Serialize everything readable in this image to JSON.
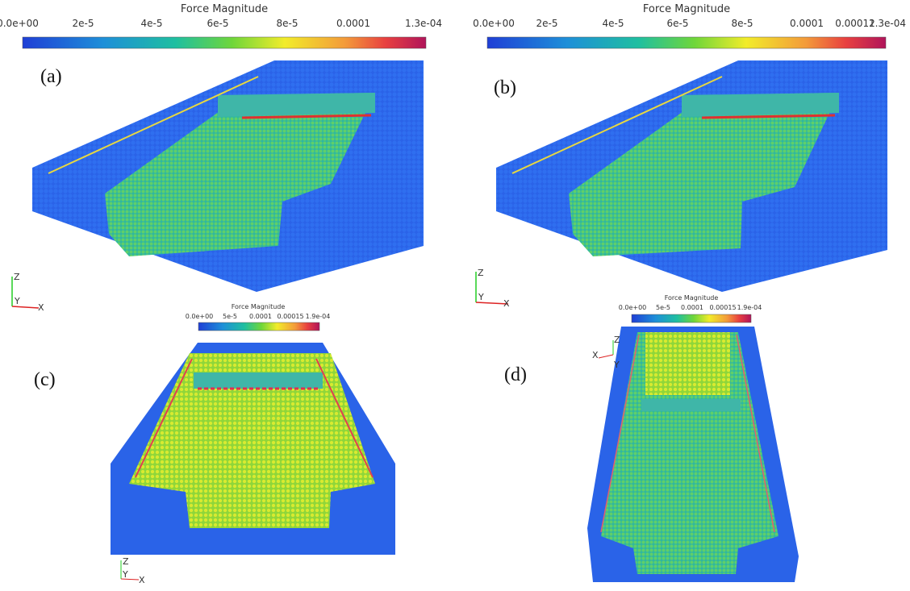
{
  "panels": [
    {
      "label": "(a)",
      "colorbar": {
        "title": "Force Magnitude",
        "ticks": [
          "0.0e+00",
          "2e-5",
          "4e-5",
          "6e-5",
          "8e-5",
          "0.0001",
          "1.3e-04"
        ]
      },
      "axes": {
        "z": "Z",
        "y": "Y",
        "x": "X"
      }
    },
    {
      "label": "(b)",
      "colorbar": {
        "title": "Force Magnitude",
        "ticks": [
          "0.0e+00",
          "2e-5",
          "4e-5",
          "6e-5",
          "8e-5",
          "0.0001",
          "0.00012",
          "1.3e-04"
        ]
      },
      "axes": {
        "z": "Z",
        "y": "Y",
        "x": "X"
      }
    },
    {
      "label": "(c)",
      "colorbar": {
        "title": "Force Magnitude",
        "ticks": [
          "0.0e+00",
          "5e-5",
          "0.0001",
          "0.00015",
          "1.9e-04"
        ]
      },
      "axes": {
        "z": "Z",
        "y": "Y",
        "x": "X"
      }
    },
    {
      "label": "(d)",
      "colorbar": {
        "title": "Force Magnitude",
        "ticks": [
          "0.0e+00",
          "5e-5",
          "0.0001",
          "0.00015",
          "1.9e-04"
        ]
      },
      "axes": {
        "z": "Z",
        "y": "Y",
        "x": "X"
      }
    }
  ]
}
